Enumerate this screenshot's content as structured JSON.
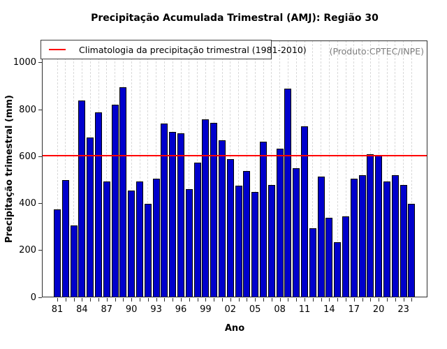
{
  "page": {
    "background": "#ffffff"
  },
  "header": {
    "title": "Precipitação Acumulada Trimestral (AMJ): Região 30"
  },
  "legend": {
    "label": "Climatologia da precipitação trimestral (1981-2010)",
    "line_color": "#ff0000",
    "position": "top-left"
  },
  "annotation": {
    "producer": "(Produto:CPTEC/INPE)"
  },
  "chart_data": {
    "type": "bar",
    "title": "Precipitação Acumulada Trimestral (AMJ): Região 30",
    "xlabel": "Ano",
    "ylabel": "Precipitação trimestral (mm)",
    "ylim": [
      0,
      1095
    ],
    "yticks": [
      0,
      200,
      400,
      600,
      800,
      1000
    ],
    "start_year": 1981,
    "end_year": 2024,
    "x_tick_labels": [
      "81",
      "84",
      "87",
      "90",
      "93",
      "96",
      "99",
      "02",
      "05",
      "08",
      "11",
      "14",
      "17",
      "20",
      "23"
    ],
    "x_tick_label_interval": 3,
    "values": [
      375,
      500,
      305,
      840,
      680,
      790,
      495,
      820,
      895,
      455,
      495,
      400,
      505,
      740,
      705,
      700,
      460,
      575,
      760,
      745,
      670,
      590,
      475,
      540,
      450,
      665,
      480,
      635,
      890,
      550,
      730,
      295,
      515,
      340,
      235,
      345,
      505,
      520,
      610,
      605,
      495,
      520,
      480,
      400
    ],
    "climatology_value": 605,
    "climatology_color": "#ff0000",
    "bar_color": "#0000cc",
    "bar_border_color": "#000000",
    "grid": "vertical-dashed",
    "grid_color": "#d9d9d9",
    "legend_position": "top-left"
  }
}
